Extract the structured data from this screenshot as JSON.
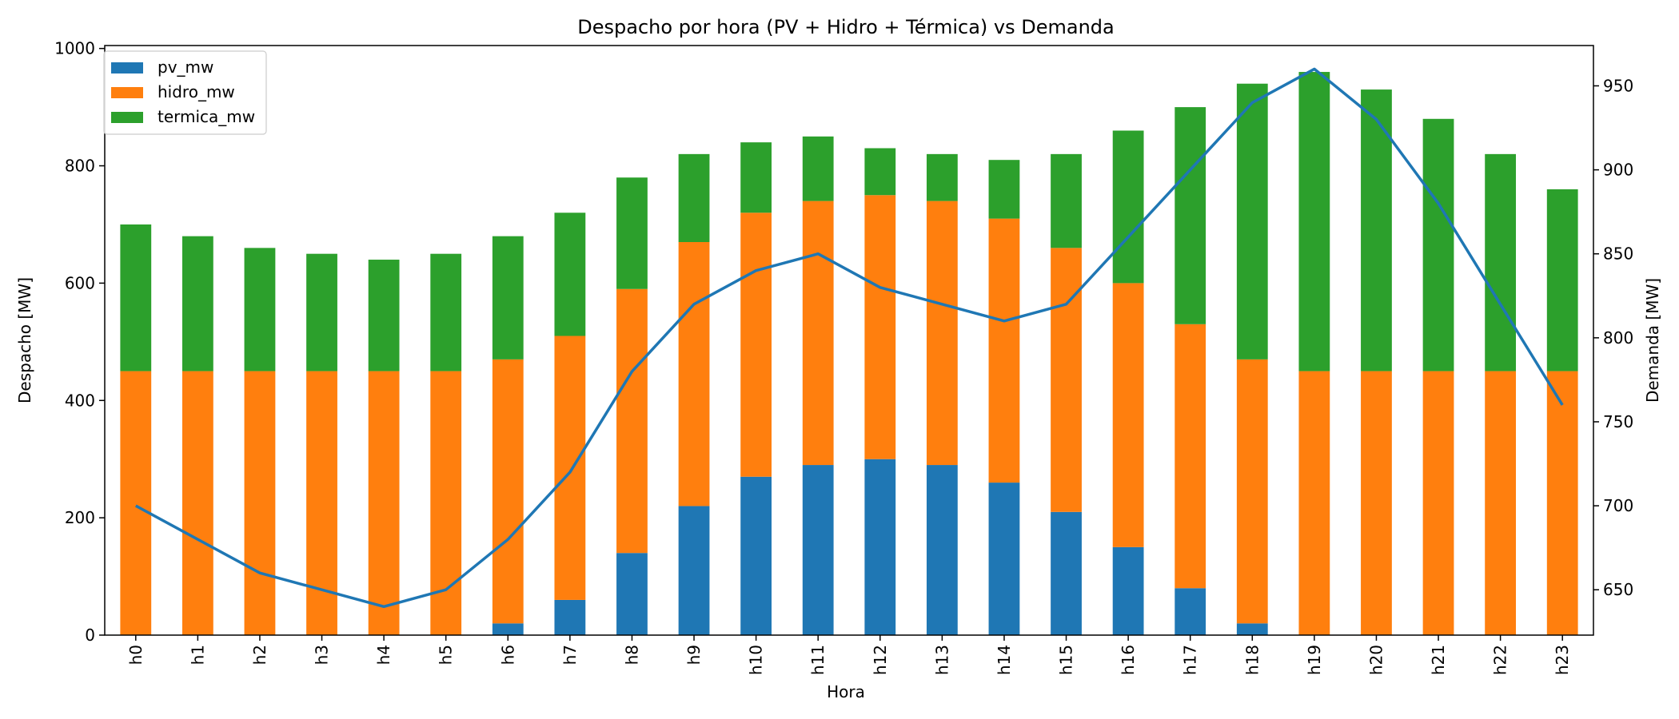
{
  "chart_data": {
    "type": "bar",
    "title": "Despacho por hora (PV + Hidro + Térmica) vs Demanda",
    "xlabel": "Hora",
    "ylabel": "Despacho [MW]",
    "ylabel_right": "Demanda [MW]",
    "categories": [
      "h0",
      "h1",
      "h2",
      "h3",
      "h4",
      "h5",
      "h6",
      "h7",
      "h8",
      "h9",
      "h10",
      "h11",
      "h12",
      "h13",
      "h14",
      "h15",
      "h16",
      "h17",
      "h18",
      "h19",
      "h20",
      "h21",
      "h22",
      "h23"
    ],
    "stacked": true,
    "series": [
      {
        "name": "pv_mw",
        "color": "#1f77b4",
        "values": [
          0,
          0,
          0,
          0,
          0,
          0,
          20,
          60,
          140,
          220,
          270,
          290,
          300,
          290,
          260,
          210,
          150,
          80,
          20,
          0,
          0,
          0,
          0,
          0
        ]
      },
      {
        "name": "hidro_mw",
        "color": "#ff7f0e",
        "values": [
          450,
          450,
          450,
          450,
          450,
          450,
          450,
          450,
          450,
          450,
          450,
          450,
          450,
          450,
          450,
          450,
          450,
          450,
          450,
          450,
          450,
          450,
          450,
          450
        ]
      },
      {
        "name": "termica_mw",
        "color": "#2ca02c",
        "values": [
          250,
          230,
          210,
          200,
          190,
          200,
          210,
          210,
          190,
          150,
          120,
          110,
          80,
          80,
          100,
          160,
          260,
          370,
          470,
          510,
          480,
          430,
          370,
          310
        ]
      }
    ],
    "line_series": {
      "name": "Demanda",
      "axis": "right",
      "color": "#1f77b4",
      "values": [
        700,
        680,
        660,
        650,
        640,
        650,
        680,
        720,
        780,
        820,
        840,
        850,
        830,
        820,
        810,
        820,
        860,
        900,
        940,
        960,
        930,
        880,
        820,
        760
      ]
    },
    "ylim": [
      0,
      1005
    ],
    "yticks": [
      0,
      200,
      400,
      600,
      800,
      1000
    ],
    "ylim_right": [
      623,
      974
    ],
    "yticks_right": [
      650,
      700,
      750,
      800,
      850,
      900,
      950
    ],
    "legend_position": "upper-left",
    "grid": false
  }
}
